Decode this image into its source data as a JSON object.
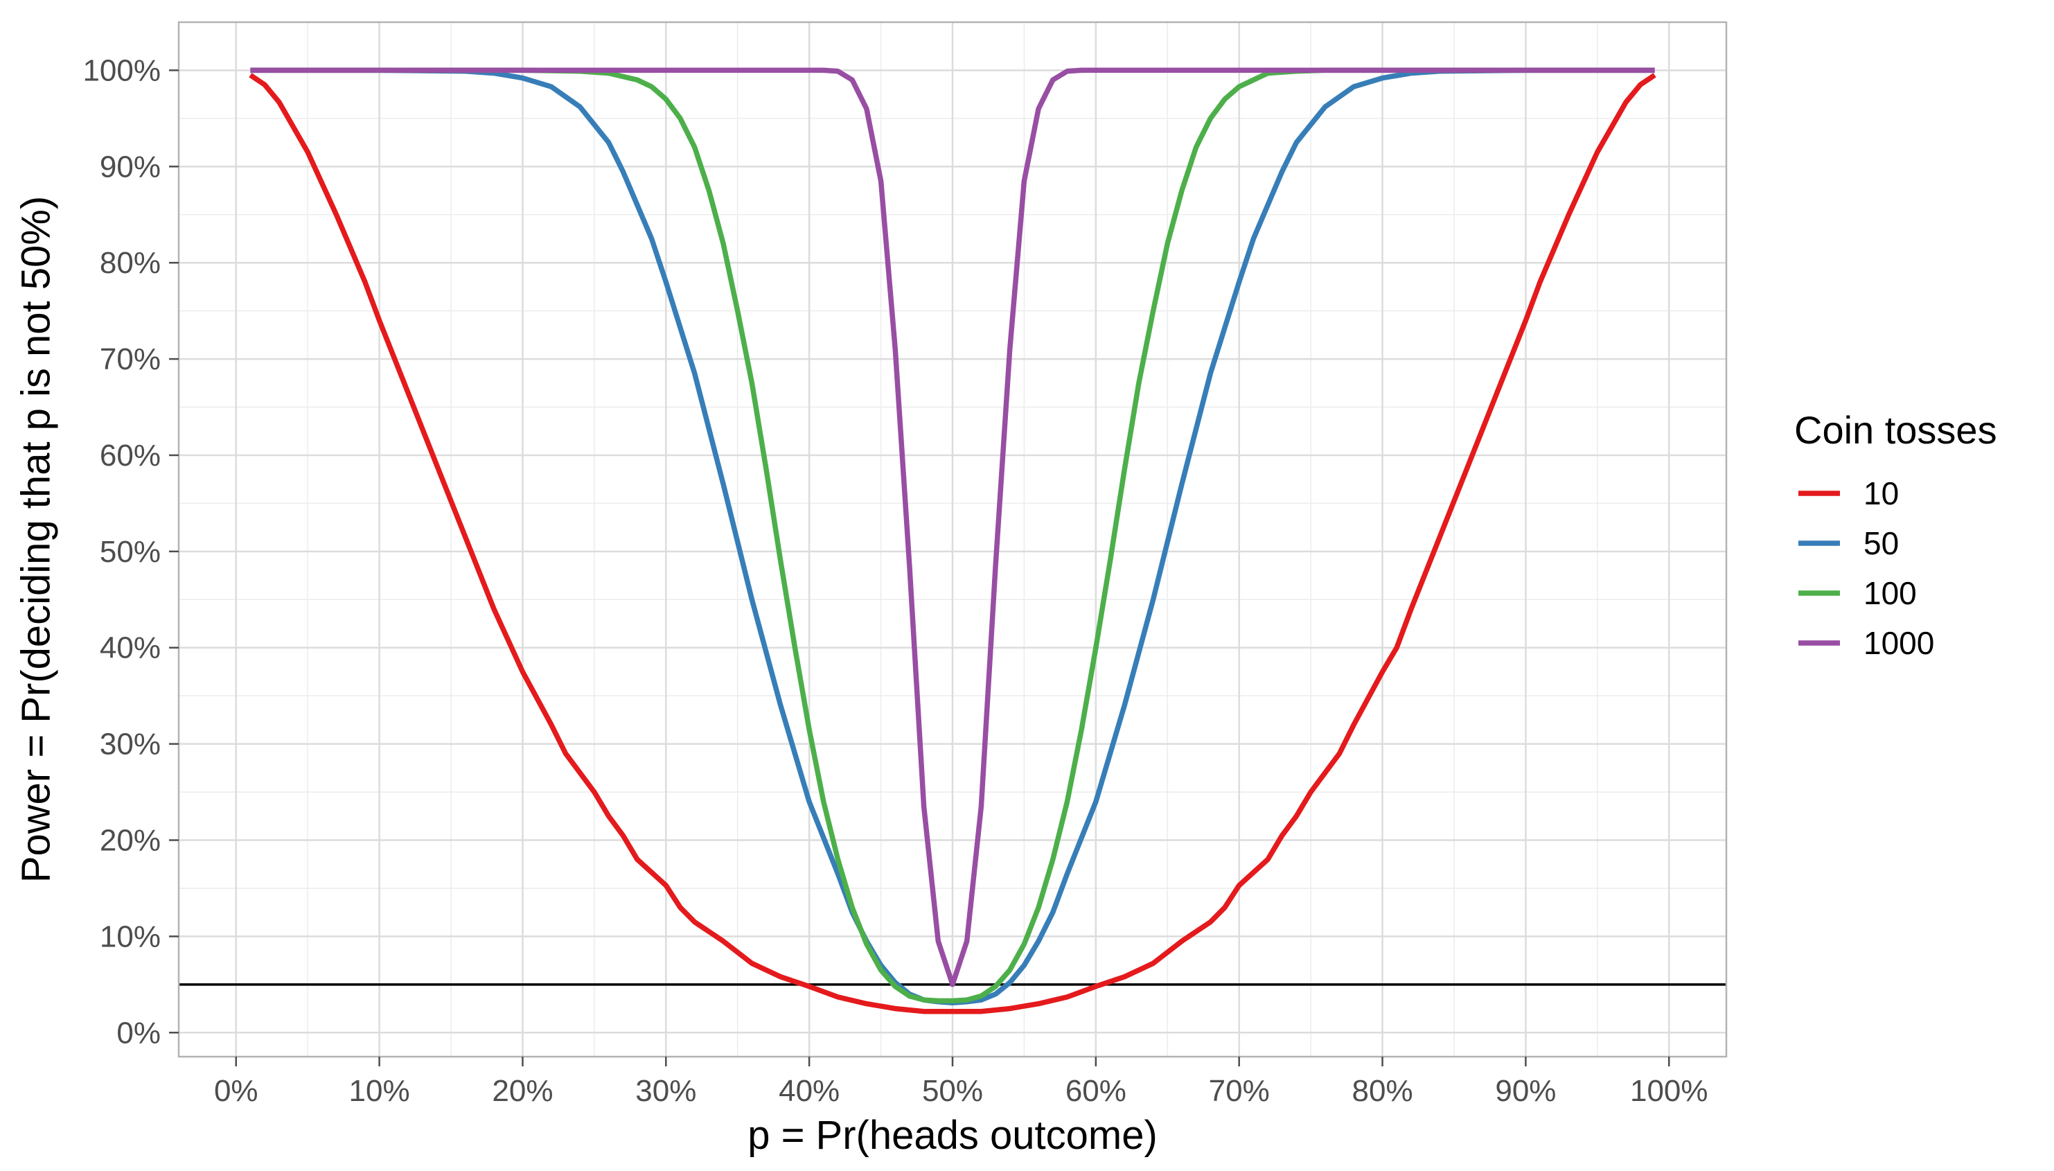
{
  "chart_data": {
    "type": "line",
    "xlabel": "p = Pr(heads outcome)",
    "ylabel": "Power = Pr(deciding that p is not 50%)",
    "xlim": [
      -0.04,
      1.04
    ],
    "ylim": [
      -0.025,
      1.05
    ],
    "x_ticks": [
      0,
      0.1,
      0.2,
      0.3,
      0.4,
      0.5,
      0.6,
      0.7,
      0.8,
      0.9,
      1.0
    ],
    "x_tick_labels": [
      "0%",
      "10%",
      "20%",
      "30%",
      "40%",
      "50%",
      "60%",
      "70%",
      "80%",
      "90%",
      "100%"
    ],
    "y_ticks": [
      0,
      0.1,
      0.2,
      0.3,
      0.4,
      0.5,
      0.6,
      0.7,
      0.8,
      0.9,
      1.0
    ],
    "y_tick_labels": [
      "0%",
      "10%",
      "20%",
      "30%",
      "40%",
      "50%",
      "60%",
      "70%",
      "80%",
      "90%",
      "100%"
    ],
    "grid": true,
    "reference_line_y": 0.05,
    "legend": {
      "title": "Coin tosses",
      "position": "right"
    },
    "series": [
      {
        "name": "10",
        "color": "#e41a1c",
        "x": [
          0.01,
          0.02,
          0.03,
          0.05,
          0.07,
          0.09,
          0.1,
          0.12,
          0.14,
          0.16,
          0.18,
          0.2,
          0.22,
          0.23,
          0.25,
          0.26,
          0.27,
          0.28,
          0.3,
          0.31,
          0.32,
          0.34,
          0.36,
          0.38,
          0.4,
          0.42,
          0.44,
          0.46,
          0.48,
          0.5,
          0.52,
          0.54,
          0.56,
          0.58,
          0.6,
          0.62,
          0.64,
          0.66,
          0.68,
          0.69,
          0.7,
          0.72,
          0.73,
          0.74,
          0.75,
          0.77,
          0.78,
          0.8,
          0.81,
          0.82,
          0.84,
          0.86,
          0.88,
          0.9,
          0.91,
          0.93,
          0.95,
          0.97,
          0.98,
          0.99
        ],
        "y": [
          0.995,
          0.985,
          0.967,
          0.915,
          0.85,
          0.78,
          0.74,
          0.665,
          0.59,
          0.515,
          0.44,
          0.375,
          0.32,
          0.29,
          0.25,
          0.225,
          0.205,
          0.18,
          0.153,
          0.13,
          0.115,
          0.095,
          0.072,
          0.058,
          0.048,
          0.037,
          0.03,
          0.025,
          0.022,
          0.022,
          0.022,
          0.025,
          0.03,
          0.037,
          0.048,
          0.058,
          0.072,
          0.095,
          0.115,
          0.13,
          0.153,
          0.18,
          0.205,
          0.225,
          0.25,
          0.29,
          0.32,
          0.375,
          0.4,
          0.44,
          0.515,
          0.59,
          0.665,
          0.74,
          0.78,
          0.85,
          0.915,
          0.967,
          0.985,
          0.995
        ]
      },
      {
        "name": "50",
        "color": "#377eb8",
        "x": [
          0.01,
          0.1,
          0.16,
          0.18,
          0.2,
          0.22,
          0.24,
          0.26,
          0.27,
          0.28,
          0.29,
          0.3,
          0.32,
          0.34,
          0.36,
          0.38,
          0.4,
          0.42,
          0.43,
          0.44,
          0.45,
          0.46,
          0.47,
          0.48,
          0.49,
          0.5,
          0.51,
          0.52,
          0.53,
          0.54,
          0.55,
          0.56,
          0.57,
          0.58,
          0.6,
          0.62,
          0.64,
          0.66,
          0.68,
          0.7,
          0.71,
          0.72,
          0.73,
          0.74,
          0.76,
          0.78,
          0.8,
          0.82,
          0.84,
          0.9,
          0.99
        ],
        "y": [
          1.0,
          1.0,
          0.999,
          0.997,
          0.992,
          0.983,
          0.962,
          0.925,
          0.895,
          0.86,
          0.825,
          0.78,
          0.685,
          0.57,
          0.45,
          0.34,
          0.24,
          0.165,
          0.125,
          0.095,
          0.07,
          0.052,
          0.04,
          0.034,
          0.032,
          0.031,
          0.032,
          0.034,
          0.04,
          0.052,
          0.07,
          0.095,
          0.125,
          0.165,
          0.24,
          0.34,
          0.45,
          0.57,
          0.685,
          0.78,
          0.825,
          0.86,
          0.895,
          0.925,
          0.962,
          0.983,
          0.992,
          0.997,
          0.999,
          1.0,
          1.0
        ]
      },
      {
        "name": "100",
        "color": "#4daf4a",
        "x": [
          0.01,
          0.2,
          0.24,
          0.26,
          0.28,
          0.29,
          0.3,
          0.31,
          0.32,
          0.33,
          0.34,
          0.35,
          0.36,
          0.37,
          0.38,
          0.39,
          0.4,
          0.41,
          0.42,
          0.43,
          0.44,
          0.45,
          0.46,
          0.47,
          0.48,
          0.49,
          0.5,
          0.51,
          0.52,
          0.53,
          0.54,
          0.55,
          0.56,
          0.57,
          0.58,
          0.59,
          0.6,
          0.61,
          0.62,
          0.63,
          0.64,
          0.65,
          0.66,
          0.67,
          0.68,
          0.69,
          0.7,
          0.71,
          0.72,
          0.74,
          0.76,
          0.8,
          0.99
        ],
        "y": [
          1.0,
          1.0,
          0.999,
          0.997,
          0.99,
          0.983,
          0.97,
          0.95,
          0.92,
          0.875,
          0.82,
          0.75,
          0.675,
          0.585,
          0.49,
          0.4,
          0.315,
          0.24,
          0.18,
          0.13,
          0.092,
          0.065,
          0.048,
          0.038,
          0.034,
          0.033,
          0.033,
          0.034,
          0.038,
          0.048,
          0.065,
          0.092,
          0.13,
          0.18,
          0.24,
          0.315,
          0.4,
          0.49,
          0.585,
          0.675,
          0.75,
          0.82,
          0.875,
          0.92,
          0.95,
          0.97,
          0.983,
          0.99,
          0.997,
          0.999,
          1.0,
          1.0,
          1.0
        ]
      },
      {
        "name": "1000",
        "color": "#984ea3",
        "x": [
          0.01,
          0.38,
          0.41,
          0.42,
          0.43,
          0.44,
          0.45,
          0.46,
          0.47,
          0.48,
          0.49,
          0.5,
          0.51,
          0.52,
          0.53,
          0.54,
          0.55,
          0.56,
          0.57,
          0.58,
          0.59,
          0.62,
          0.99
        ],
        "y": [
          1.0,
          1.0,
          1.0,
          0.999,
          0.99,
          0.96,
          0.885,
          0.71,
          0.485,
          0.235,
          0.095,
          0.05,
          0.095,
          0.235,
          0.485,
          0.71,
          0.885,
          0.96,
          0.99,
          0.999,
          1.0,
          1.0,
          1.0
        ]
      }
    ]
  }
}
